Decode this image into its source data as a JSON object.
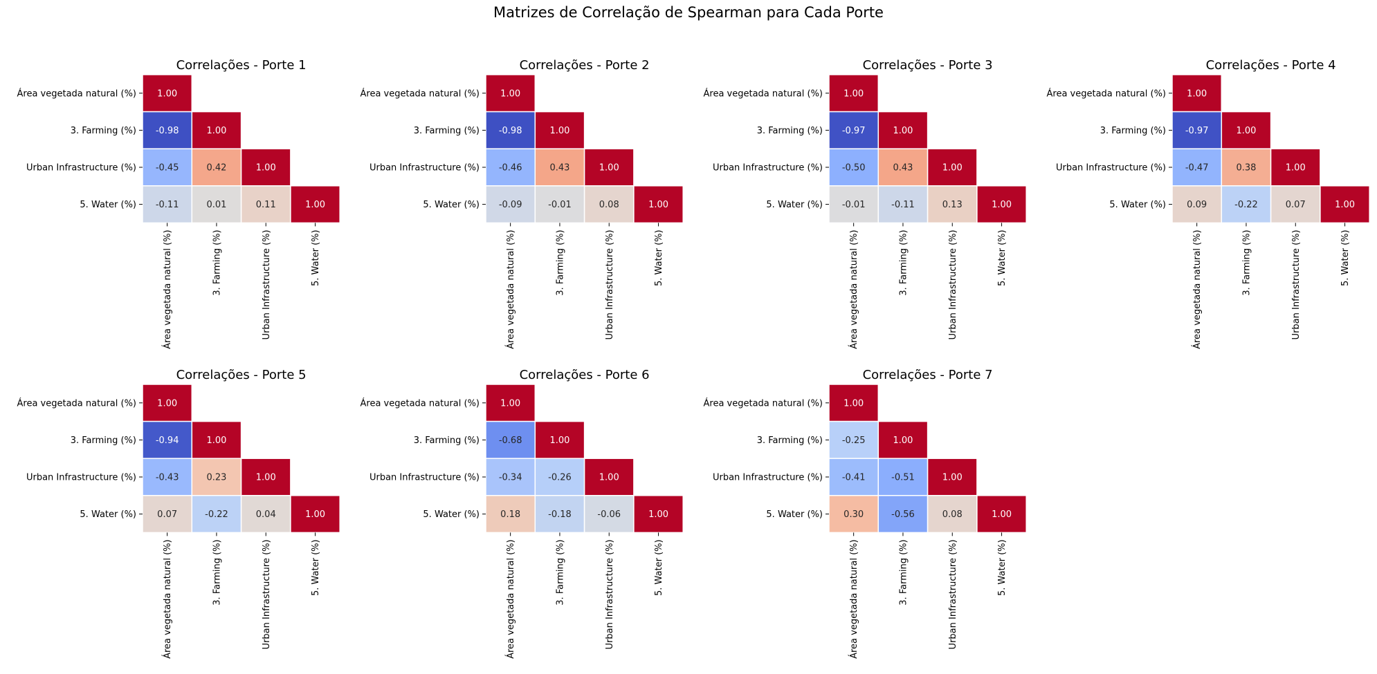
{
  "chart_data": {
    "type": "heatmap",
    "title": "Matrizes de Correlação de Spearman para Cada Porte",
    "colormap": "coolwarm",
    "vmin": -1,
    "vmax": 1,
    "mask": "upper-triangle (lower triangle incl. diagonal shown)",
    "variables": [
      "Área vegetada natural (%)",
      "3. Farming (%)",
      "Urban Infrastructure (%)",
      "5. Water (%)"
    ],
    "panels": [
      {
        "title": "Correlações - Porte 1",
        "matrix": [
          [
            1.0
          ],
          [
            -0.98,
            1.0
          ],
          [
            -0.45,
            0.42,
            1.0
          ],
          [
            -0.11,
            0.01,
            0.11,
            1.0
          ]
        ]
      },
      {
        "title": "Correlações - Porte 2",
        "matrix": [
          [
            1.0
          ],
          [
            -0.98,
            1.0
          ],
          [
            -0.46,
            0.43,
            1.0
          ],
          [
            -0.09,
            -0.01,
            0.08,
            1.0
          ]
        ]
      },
      {
        "title": "Correlações - Porte 3",
        "matrix": [
          [
            1.0
          ],
          [
            -0.97,
            1.0
          ],
          [
            -0.5,
            0.43,
            1.0
          ],
          [
            -0.01,
            -0.11,
            0.13,
            1.0
          ]
        ]
      },
      {
        "title": "Correlações - Porte 4",
        "matrix": [
          [
            1.0
          ],
          [
            -0.97,
            1.0
          ],
          [
            -0.47,
            0.38,
            1.0
          ],
          [
            0.09,
            -0.22,
            0.07,
            1.0
          ]
        ]
      },
      {
        "title": "Correlações - Porte 5",
        "matrix": [
          [
            1.0
          ],
          [
            -0.94,
            1.0
          ],
          [
            -0.43,
            0.23,
            1.0
          ],
          [
            0.07,
            -0.22,
            0.04,
            1.0
          ]
        ]
      },
      {
        "title": "Correlações - Porte 6",
        "matrix": [
          [
            1.0
          ],
          [
            -0.68,
            1.0
          ],
          [
            -0.34,
            -0.26,
            1.0
          ],
          [
            0.18,
            -0.18,
            -0.06,
            1.0
          ]
        ]
      },
      {
        "title": "Correlações - Porte 7",
        "matrix": [
          [
            1.0
          ],
          [
            -0.25,
            1.0
          ],
          [
            -0.41,
            -0.51,
            1.0
          ],
          [
            0.3,
            -0.56,
            0.08,
            1.0
          ]
        ]
      }
    ]
  }
}
